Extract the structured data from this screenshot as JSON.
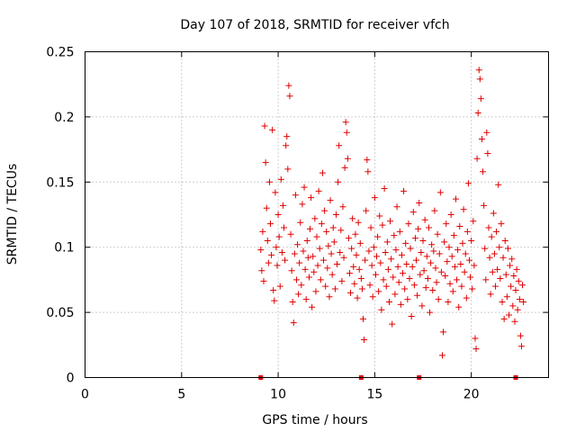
{
  "chart_data": {
    "type": "scatter",
    "title": "Day 107 of 2018, SRMTID for receiver vfch",
    "xlabel": "GPS time / hours",
    "ylabel": "SRMTID / TECUs",
    "xlim": [
      0,
      24
    ],
    "ylim": [
      0,
      0.25
    ],
    "xticks": [
      "0",
      "5",
      "10",
      "15",
      "20"
    ],
    "xtick_values": [
      0,
      5,
      10,
      15,
      20
    ],
    "yticks": [
      "0",
      "0.05",
      "0.1",
      "0.15",
      "0.2",
      "0.25"
    ],
    "ytick_values": [
      0,
      0.05,
      0.1,
      0.15,
      0.2,
      0.25
    ],
    "grid": true,
    "marker": "+",
    "color": "#e00000",
    "baseline_markers_x": [
      9.1,
      14.3,
      17.3,
      22.3
    ],
    "series": [
      {
        "values_xy": [
          [
            9.1,
            0.098
          ],
          [
            9.15,
            0.082
          ],
          [
            9.2,
            0.112
          ],
          [
            9.25,
            0.074
          ],
          [
            9.3,
            0.193
          ],
          [
            9.35,
            0.165
          ],
          [
            9.4,
            0.13
          ],
          [
            9.45,
            0.105
          ],
          [
            9.5,
            0.088
          ],
          [
            9.55,
            0.15
          ],
          [
            9.6,
            0.118
          ],
          [
            9.65,
            0.094
          ],
          [
            9.7,
            0.19
          ],
          [
            9.75,
            0.067
          ],
          [
            9.8,
            0.059
          ],
          [
            9.85,
            0.142
          ],
          [
            9.9,
            0.1
          ],
          [
            9.95,
            0.086
          ],
          [
            10.0,
            0.125
          ],
          [
            10.05,
            0.108
          ],
          [
            10.1,
            0.07
          ],
          [
            10.15,
            0.152
          ],
          [
            10.2,
            0.096
          ],
          [
            10.25,
            0.132
          ],
          [
            10.3,
            0.115
          ],
          [
            10.35,
            0.09
          ],
          [
            10.4,
            0.178
          ],
          [
            10.45,
            0.185
          ],
          [
            10.5,
            0.16
          ],
          [
            10.55,
            0.224
          ],
          [
            10.6,
            0.216
          ],
          [
            10.65,
            0.11
          ],
          [
            10.7,
            0.082
          ],
          [
            10.75,
            0.058
          ],
          [
            10.8,
            0.042
          ],
          [
            10.85,
            0.095
          ],
          [
            10.9,
            0.14
          ],
          [
            10.95,
            0.075
          ],
          [
            11.0,
            0.102
          ],
          [
            11.05,
            0.064
          ],
          [
            11.1,
            0.088
          ],
          [
            11.15,
            0.119
          ],
          [
            11.2,
            0.071
          ],
          [
            11.25,
            0.133
          ],
          [
            11.3,
            0.097
          ],
          [
            11.35,
            0.146
          ],
          [
            11.4,
            0.083
          ],
          [
            11.45,
            0.06
          ],
          [
            11.5,
            0.105
          ],
          [
            11.55,
            0.092
          ],
          [
            11.6,
            0.077
          ],
          [
            11.65,
            0.114
          ],
          [
            11.7,
            0.138
          ],
          [
            11.75,
            0.054
          ],
          [
            11.8,
            0.093
          ],
          [
            11.85,
            0.081
          ],
          [
            11.9,
            0.122
          ],
          [
            11.95,
            0.066
          ],
          [
            12.0,
            0.108
          ],
          [
            12.05,
            0.086
          ],
          [
            12.1,
            0.143
          ],
          [
            12.15,
            0.099
          ],
          [
            12.2,
            0.075
          ],
          [
            12.25,
            0.118
          ],
          [
            12.3,
            0.157
          ],
          [
            12.35,
            0.09
          ],
          [
            12.4,
            0.128
          ],
          [
            12.45,
            0.07
          ],
          [
            12.5,
            0.112
          ],
          [
            12.55,
            0.084
          ],
          [
            12.6,
            0.101
          ],
          [
            12.65,
            0.062
          ],
          [
            12.7,
            0.136
          ],
          [
            12.75,
            0.095
          ],
          [
            12.8,
            0.079
          ],
          [
            12.85,
            0.115
          ],
          [
            12.9,
            0.104
          ],
          [
            12.95,
            0.068
          ],
          [
            13.0,
            0.125
          ],
          [
            13.05,
            0.087
          ],
          [
            13.1,
            0.15
          ],
          [
            13.15,
            0.178
          ],
          [
            13.2,
            0.096
          ],
          [
            13.25,
            0.113
          ],
          [
            13.3,
            0.074
          ],
          [
            13.35,
            0.131
          ],
          [
            13.4,
            0.092
          ],
          [
            13.45,
            0.161
          ],
          [
            13.5,
            0.196
          ],
          [
            13.55,
            0.188
          ],
          [
            13.6,
            0.168
          ],
          [
            13.65,
            0.107
          ],
          [
            13.7,
            0.08
          ],
          [
            13.75,
            0.065
          ],
          [
            13.8,
            0.099
          ],
          [
            13.85,
            0.122
          ],
          [
            13.9,
            0.085
          ],
          [
            13.95,
            0.072
          ],
          [
            14.0,
            0.11
          ],
          [
            14.05,
            0.094
          ],
          [
            14.1,
            0.061
          ],
          [
            14.15,
            0.119
          ],
          [
            14.2,
            0.083
          ],
          [
            14.25,
            0.103
          ],
          [
            14.3,
            0.076
          ],
          [
            14.35,
            0.068
          ],
          [
            14.4,
            0.045
          ],
          [
            14.45,
            0.029
          ],
          [
            14.5,
            0.09
          ],
          [
            14.55,
            0.128
          ],
          [
            14.6,
            0.167
          ],
          [
            14.65,
            0.158
          ],
          [
            14.7,
            0.097
          ],
          [
            14.75,
            0.071
          ],
          [
            14.8,
            0.115
          ],
          [
            14.85,
            0.086
          ],
          [
            14.9,
            0.062
          ],
          [
            14.95,
            0.1
          ],
          [
            15.0,
            0.138
          ],
          [
            15.05,
            0.079
          ],
          [
            15.1,
            0.093
          ],
          [
            15.15,
            0.108
          ],
          [
            15.2,
            0.066
          ],
          [
            15.25,
            0.124
          ],
          [
            15.3,
            0.088
          ],
          [
            15.35,
            0.052
          ],
          [
            15.4,
            0.117
          ],
          [
            15.45,
            0.075
          ],
          [
            15.5,
            0.145
          ],
          [
            15.55,
            0.096
          ],
          [
            15.6,
            0.07
          ],
          [
            15.65,
            0.104
          ],
          [
            15.7,
            0.083
          ],
          [
            15.75,
            0.058
          ],
          [
            15.8,
            0.12
          ],
          [
            15.85,
            0.091
          ],
          [
            15.9,
            0.041
          ],
          [
            15.95,
            0.077
          ],
          [
            16.0,
            0.109
          ],
          [
            16.05,
            0.064
          ],
          [
            16.1,
            0.098
          ],
          [
            16.15,
            0.131
          ],
          [
            16.2,
            0.085
          ],
          [
            16.25,
            0.073
          ],
          [
            16.3,
            0.112
          ],
          [
            16.35,
            0.056
          ],
          [
            16.4,
            0.094
          ],
          [
            16.45,
            0.08
          ],
          [
            16.5,
            0.143
          ],
          [
            16.55,
            0.068
          ],
          [
            16.6,
            0.103
          ],
          [
            16.65,
            0.087
          ],
          [
            16.7,
            0.06
          ],
          [
            16.75,
            0.118
          ],
          [
            16.8,
            0.076
          ],
          [
            16.85,
            0.099
          ],
          [
            16.9,
            0.047
          ],
          [
            16.95,
            0.085
          ],
          [
            17.0,
            0.127
          ],
          [
            17.05,
            0.071
          ],
          [
            17.1,
            0.107
          ],
          [
            17.15,
            0.09
          ],
          [
            17.2,
            0.063
          ],
          [
            17.25,
            0.114
          ],
          [
            17.3,
            0.134
          ],
          [
            17.35,
            0.079
          ],
          [
            17.4,
            0.096
          ],
          [
            17.45,
            0.055
          ],
          [
            17.5,
            0.105
          ],
          [
            17.55,
            0.082
          ],
          [
            17.6,
            0.121
          ],
          [
            17.65,
            0.069
          ],
          [
            17.7,
            0.093
          ],
          [
            17.75,
            0.076
          ],
          [
            17.8,
            0.115
          ],
          [
            17.85,
            0.05
          ],
          [
            17.9,
            0.088
          ],
          [
            17.95,
            0.102
          ],
          [
            18.0,
            0.067
          ],
          [
            18.05,
            0.097
          ],
          [
            18.1,
            0.128
          ],
          [
            18.15,
            0.084
          ],
          [
            18.2,
            0.073
          ],
          [
            18.25,
            0.11
          ],
          [
            18.3,
            0.06
          ],
          [
            18.35,
            0.095
          ],
          [
            18.4,
            0.142
          ],
          [
            18.45,
            0.081
          ],
          [
            18.5,
            0.017
          ],
          [
            18.55,
            0.035
          ],
          [
            18.6,
            0.104
          ],
          [
            18.65,
            0.078
          ],
          [
            18.7,
            0.118
          ],
          [
            18.75,
            0.089
          ],
          [
            18.8,
            0.058
          ],
          [
            18.85,
            0.1
          ],
          [
            18.9,
            0.072
          ],
          [
            18.95,
            0.125
          ],
          [
            19.0,
            0.093
          ],
          [
            19.05,
            0.066
          ],
          [
            19.1,
            0.109
          ],
          [
            19.15,
            0.085
          ],
          [
            19.2,
            0.137
          ],
          [
            19.25,
            0.075
          ],
          [
            19.3,
            0.098
          ],
          [
            19.35,
            0.054
          ],
          [
            19.4,
            0.116
          ],
          [
            19.45,
            0.087
          ],
          [
            19.5,
            0.07
          ],
          [
            19.55,
            0.103
          ],
          [
            19.6,
            0.129
          ],
          [
            19.65,
            0.081
          ],
          [
            19.7,
            0.095
          ],
          [
            19.75,
            0.061
          ],
          [
            19.8,
            0.112
          ],
          [
            19.85,
            0.149
          ],
          [
            19.9,
            0.09
          ],
          [
            19.95,
            0.077
          ],
          [
            20.0,
            0.105
          ],
          [
            20.05,
            0.068
          ],
          [
            20.1,
            0.12
          ],
          [
            20.15,
            0.086
          ],
          [
            20.2,
            0.03
          ],
          [
            20.25,
            0.022
          ],
          [
            20.3,
            0.168
          ],
          [
            20.35,
            0.203
          ],
          [
            20.4,
            0.236
          ],
          [
            20.45,
            0.229
          ],
          [
            20.5,
            0.214
          ],
          [
            20.55,
            0.183
          ],
          [
            20.6,
            0.158
          ],
          [
            20.65,
            0.132
          ],
          [
            20.7,
            0.099
          ],
          [
            20.75,
            0.075
          ],
          [
            20.8,
            0.188
          ],
          [
            20.85,
            0.172
          ],
          [
            20.9,
            0.115
          ],
          [
            20.95,
            0.092
          ],
          [
            21.0,
            0.064
          ],
          [
            21.05,
            0.108
          ],
          [
            21.1,
            0.081
          ],
          [
            21.15,
            0.126
          ],
          [
            21.2,
            0.095
          ],
          [
            21.25,
            0.07
          ],
          [
            21.3,
            0.112
          ],
          [
            21.35,
            0.083
          ],
          [
            21.4,
            0.148
          ],
          [
            21.45,
            0.1
          ],
          [
            21.5,
            0.076
          ],
          [
            21.55,
            0.118
          ],
          [
            21.6,
            0.058
          ],
          [
            21.65,
            0.092
          ],
          [
            21.7,
            0.045
          ],
          [
            21.75,
            0.105
          ],
          [
            21.8,
            0.079
          ],
          [
            21.85,
            0.062
          ],
          [
            21.9,
            0.099
          ],
          [
            21.95,
            0.048
          ],
          [
            22.0,
            0.086
          ],
          [
            22.05,
            0.07
          ],
          [
            22.1,
            0.091
          ],
          [
            22.15,
            0.055
          ],
          [
            22.2,
            0.078
          ],
          [
            22.25,
            0.043
          ],
          [
            22.3,
            0.067
          ],
          [
            22.35,
            0.083
          ],
          [
            22.4,
            0.052
          ],
          [
            22.45,
            0.074
          ],
          [
            22.5,
            0.06
          ],
          [
            22.55,
            0.032
          ],
          [
            22.6,
            0.024
          ],
          [
            22.65,
            0.071
          ],
          [
            22.7,
            0.058
          ]
        ]
      }
    ]
  }
}
